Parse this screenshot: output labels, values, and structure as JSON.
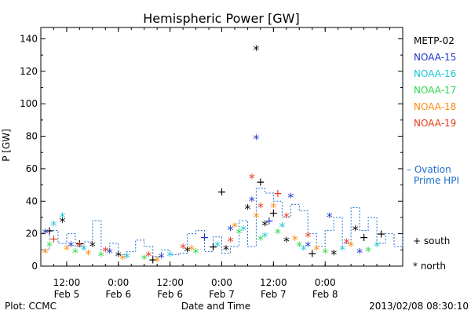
{
  "chart_data": {
    "type": "scatter",
    "title": "Hemispheric Power [GW]",
    "xlabel": "Date and Time",
    "ylabel": "P [GW]",
    "ylim": [
      0,
      147
    ],
    "xlim_hours": [
      0,
      84
    ],
    "x_ticks": [
      {
        "hours": 6,
        "time": "12:00",
        "date": "Feb 5"
      },
      {
        "hours": 18,
        "time": "0:00",
        "date": "Feb 6"
      },
      {
        "hours": 30,
        "time": "12:00",
        "date": "Feb 6"
      },
      {
        "hours": 42,
        "time": "0:00",
        "date": "Feb 7"
      },
      {
        "hours": 54,
        "time": "12:00",
        "date": "Feb 7"
      },
      {
        "hours": 66,
        "time": "0:00",
        "date": "Feb 8"
      }
    ],
    "y_ticks": [
      0,
      20,
      40,
      60,
      80,
      100,
      120,
      140
    ],
    "legend": [
      {
        "name": "METP-02",
        "color": "#000000"
      },
      {
        "name": "NOAA-15",
        "color": "#1f36c8"
      },
      {
        "name": "NOAA-16",
        "color": "#19c6d6"
      },
      {
        "name": "NOAA-17",
        "color": "#2fd84a"
      },
      {
        "name": "NOAA-18",
        "color": "#ff8a10"
      },
      {
        "name": "NOAA-19",
        "color": "#e63a1a"
      }
    ],
    "ovation": {
      "label": [
        "– Ovation",
        "Prime HPI"
      ],
      "color": "#1e6fcf",
      "hours": [
        0,
        2,
        4,
        6,
        8,
        10,
        12,
        14,
        16,
        18,
        20,
        22,
        24,
        26,
        28,
        30,
        32,
        34,
        36,
        38,
        40,
        42,
        44,
        46,
        48,
        50,
        52,
        54,
        56,
        58,
        60,
        62,
        64,
        66,
        68,
        70,
        72,
        74,
        76,
        78,
        80,
        82,
        84
      ],
      "values": [
        10,
        22,
        14,
        20,
        12,
        15,
        28,
        10,
        14,
        7,
        9,
        16,
        12,
        6,
        10,
        7,
        8,
        20,
        22,
        9,
        18,
        8,
        12,
        28,
        12,
        48,
        45,
        40,
        30,
        38,
        34,
        20,
        12,
        22,
        30,
        14,
        36,
        22,
        30,
        14,
        20,
        12,
        20
      ]
    },
    "markers_legend": {
      "plus": "+ south",
      "star": "* north"
    },
    "points": [
      {
        "x": 2,
        "y": 22,
        "sat": "METP-02",
        "m": "+"
      },
      {
        "x": 5,
        "y": 27,
        "sat": "METP-02",
        "m": "*"
      },
      {
        "x": 9,
        "y": 14,
        "sat": "METP-02",
        "m": "+"
      },
      {
        "x": 12,
        "y": 12,
        "sat": "METP-02",
        "m": "*"
      },
      {
        "x": 18,
        "y": 6,
        "sat": "METP-02",
        "m": "*"
      },
      {
        "x": 26,
        "y": 4,
        "sat": "METP-02",
        "m": "+"
      },
      {
        "x": 34,
        "y": 9,
        "sat": "METP-02",
        "m": "*"
      },
      {
        "x": 40,
        "y": 12,
        "sat": "METP-02",
        "m": "+"
      },
      {
        "x": 42,
        "y": 46,
        "sat": "METP-02",
        "m": "+"
      },
      {
        "x": 43,
        "y": 10,
        "sat": "METP-02",
        "m": "*"
      },
      {
        "x": 48,
        "y": 35,
        "sat": "METP-02",
        "m": "*"
      },
      {
        "x": 50,
        "y": 133,
        "sat": "METP-02",
        "m": "*"
      },
      {
        "x": 51,
        "y": 52,
        "sat": "METP-02",
        "m": "+"
      },
      {
        "x": 52,
        "y": 25,
        "sat": "METP-02",
        "m": "*"
      },
      {
        "x": 54,
        "y": 33,
        "sat": "METP-02",
        "m": "+"
      },
      {
        "x": 57,
        "y": 15,
        "sat": "METP-02",
        "m": "*"
      },
      {
        "x": 63,
        "y": 8,
        "sat": "METP-02",
        "m": "+"
      },
      {
        "x": 68,
        "y": 7,
        "sat": "METP-02",
        "m": "*"
      },
      {
        "x": 73,
        "y": 22,
        "sat": "METP-02",
        "m": "*"
      },
      {
        "x": 75,
        "y": 18,
        "sat": "METP-02",
        "m": "+"
      },
      {
        "x": 79,
        "y": 20,
        "sat": "METP-02",
        "m": "+"
      },
      {
        "x": 1,
        "y": 20,
        "sat": "NOAA-15",
        "m": "*"
      },
      {
        "x": 7,
        "y": 12,
        "sat": "NOAA-15",
        "m": "*"
      },
      {
        "x": 16,
        "y": 8,
        "sat": "NOAA-15",
        "m": "*"
      },
      {
        "x": 28,
        "y": 5,
        "sat": "NOAA-15",
        "m": "*"
      },
      {
        "x": 38,
        "y": 18,
        "sat": "NOAA-15",
        "m": "+"
      },
      {
        "x": 44,
        "y": 22,
        "sat": "NOAA-15",
        "m": "*"
      },
      {
        "x": 50,
        "y": 78,
        "sat": "NOAA-15",
        "m": "*"
      },
      {
        "x": 49,
        "y": 40,
        "sat": "NOAA-15",
        "m": "*"
      },
      {
        "x": 53,
        "y": 28,
        "sat": "NOAA-15",
        "m": "+"
      },
      {
        "x": 58,
        "y": 42,
        "sat": "NOAA-15",
        "m": "*"
      },
      {
        "x": 62,
        "y": 12,
        "sat": "NOAA-15",
        "m": "*"
      },
      {
        "x": 67,
        "y": 30,
        "sat": "NOAA-15",
        "m": "*"
      },
      {
        "x": 74,
        "y": 8,
        "sat": "NOAA-15",
        "m": "*"
      },
      {
        "x": 3,
        "y": 25,
        "sat": "NOAA-16",
        "m": "*"
      },
      {
        "x": 5,
        "y": 30,
        "sat": "NOAA-16",
        "m": "*"
      },
      {
        "x": 10,
        "y": 10,
        "sat": "NOAA-16",
        "m": "*"
      },
      {
        "x": 20,
        "y": 5,
        "sat": "NOAA-16",
        "m": "*"
      },
      {
        "x": 30,
        "y": 6,
        "sat": "NOAA-16",
        "m": "*"
      },
      {
        "x": 41,
        "y": 12,
        "sat": "NOAA-16",
        "m": "*"
      },
      {
        "x": 47,
        "y": 22,
        "sat": "NOAA-16",
        "m": "*"
      },
      {
        "x": 52,
        "y": 18,
        "sat": "NOAA-16",
        "m": "*"
      },
      {
        "x": 56,
        "y": 24,
        "sat": "NOAA-16",
        "m": "*"
      },
      {
        "x": 61,
        "y": 10,
        "sat": "NOAA-16",
        "m": "*"
      },
      {
        "x": 70,
        "y": 10,
        "sat": "NOAA-16",
        "m": "*"
      },
      {
        "x": 78,
        "y": 12,
        "sat": "NOAA-16",
        "m": "*"
      },
      {
        "x": 2,
        "y": 12,
        "sat": "NOAA-17",
        "m": "*"
      },
      {
        "x": 8,
        "y": 8,
        "sat": "NOAA-17",
        "m": "*"
      },
      {
        "x": 14,
        "y": 6,
        "sat": "NOAA-17",
        "m": "*"
      },
      {
        "x": 24,
        "y": 4,
        "sat": "NOAA-17",
        "m": "*"
      },
      {
        "x": 36,
        "y": 8,
        "sat": "NOAA-17",
        "m": "*"
      },
      {
        "x": 46,
        "y": 20,
        "sat": "NOAA-17",
        "m": "*"
      },
      {
        "x": 51,
        "y": 16,
        "sat": "NOAA-17",
        "m": "*"
      },
      {
        "x": 55,
        "y": 20,
        "sat": "NOAA-17",
        "m": "*"
      },
      {
        "x": 60,
        "y": 12,
        "sat": "NOAA-17",
        "m": "*"
      },
      {
        "x": 66,
        "y": 8,
        "sat": "NOAA-17",
        "m": "*"
      },
      {
        "x": 76,
        "y": 9,
        "sat": "NOAA-17",
        "m": "*"
      },
      {
        "x": 1,
        "y": 8,
        "sat": "NOAA-18",
        "m": "*"
      },
      {
        "x": 6,
        "y": 10,
        "sat": "NOAA-18",
        "m": "*"
      },
      {
        "x": 11,
        "y": 7,
        "sat": "NOAA-18",
        "m": "*"
      },
      {
        "x": 19,
        "y": 4,
        "sat": "NOAA-18",
        "m": "*"
      },
      {
        "x": 27,
        "y": 3,
        "sat": "NOAA-18",
        "m": "*"
      },
      {
        "x": 35,
        "y": 10,
        "sat": "NOAA-18",
        "m": "*"
      },
      {
        "x": 45,
        "y": 24,
        "sat": "NOAA-18",
        "m": "*"
      },
      {
        "x": 50,
        "y": 30,
        "sat": "NOAA-18",
        "m": "*"
      },
      {
        "x": 54,
        "y": 36,
        "sat": "NOAA-18",
        "m": "*"
      },
      {
        "x": 59,
        "y": 16,
        "sat": "NOAA-18",
        "m": "*"
      },
      {
        "x": 64,
        "y": 10,
        "sat": "NOAA-18",
        "m": "*"
      },
      {
        "x": 72,
        "y": 12,
        "sat": "NOAA-18",
        "m": "*"
      },
      {
        "x": 3,
        "y": 17,
        "sat": "NOAA-19",
        "m": "+"
      },
      {
        "x": 9,
        "y": 12,
        "sat": "NOAA-19",
        "m": "*"
      },
      {
        "x": 15,
        "y": 9,
        "sat": "NOAA-19",
        "m": "*"
      },
      {
        "x": 25,
        "y": 6,
        "sat": "NOAA-19",
        "m": "*"
      },
      {
        "x": 33,
        "y": 11,
        "sat": "NOAA-19",
        "m": "*"
      },
      {
        "x": 44,
        "y": 15,
        "sat": "NOAA-19",
        "m": "*"
      },
      {
        "x": 49,
        "y": 54,
        "sat": "NOAA-19",
        "m": "*"
      },
      {
        "x": 51,
        "y": 36,
        "sat": "NOAA-19",
        "m": "*"
      },
      {
        "x": 55,
        "y": 45,
        "sat": "NOAA-19",
        "m": "+"
      },
      {
        "x": 57,
        "y": 30,
        "sat": "NOAA-19",
        "m": "*"
      },
      {
        "x": 62,
        "y": 18,
        "sat": "NOAA-19",
        "m": "*"
      },
      {
        "x": 71,
        "y": 14,
        "sat": "NOAA-19",
        "m": "*"
      }
    ]
  },
  "footer": {
    "plot_by": "Plot: CCMC",
    "timestamp": "2013/02/08 08:30:10"
  }
}
